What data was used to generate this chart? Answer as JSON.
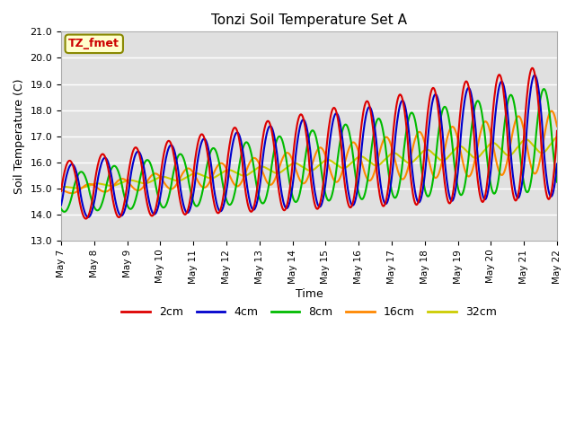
{
  "title": "Tonzi Soil Temperature Set A",
  "xlabel": "Time",
  "ylabel": "Soil Temperature (C)",
  "ylim": [
    13.0,
    21.0
  ],
  "yticks": [
    13.0,
    14.0,
    15.0,
    16.0,
    17.0,
    18.0,
    19.0,
    20.0,
    21.0
  ],
  "annotation": "TZ_fmet",
  "legend": [
    "2cm",
    "4cm",
    "8cm",
    "16cm",
    "32cm"
  ],
  "line_colors": [
    "#dd0000",
    "#0000cc",
    "#00bb00",
    "#ff8800",
    "#cccc00"
  ],
  "background_color": "#e0e0e0",
  "fig_color": "#ffffff",
  "xtick_labels": [
    "May 7",
    "May 8",
    "May 9",
    "May 10",
    "May 11",
    "May 12",
    "May 13",
    "May 14",
    "May 15",
    "May 16",
    "May 17",
    "May 18",
    "May 19",
    "May 20",
    "May 21",
    "May 22"
  ],
  "num_days": 15,
  "start_day": 7
}
